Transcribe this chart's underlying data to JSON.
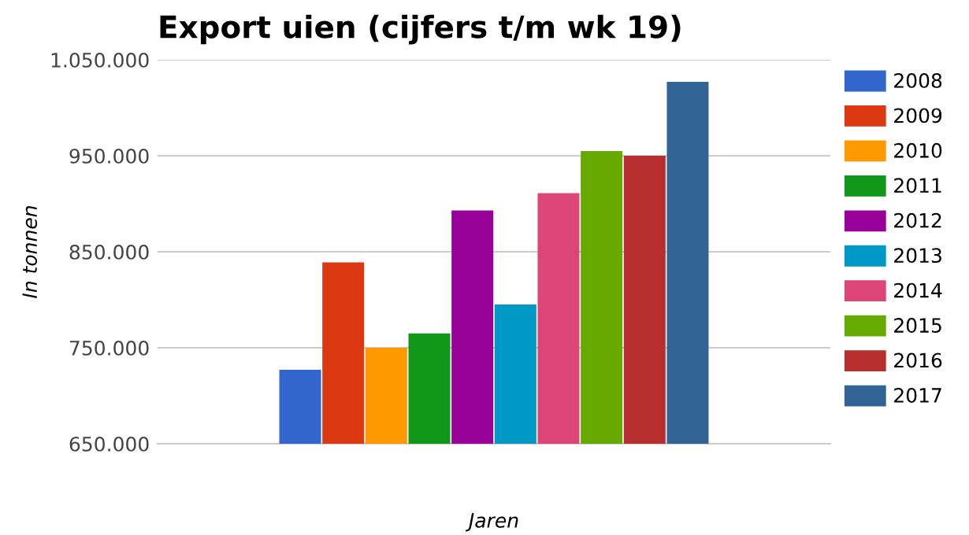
{
  "chart_data": {
    "type": "bar",
    "title": "Export uien (cijfers t/m wk 19)",
    "xlabel": "Jaren",
    "ylabel": "In tonnen",
    "categories": [
      null
    ],
    "series": [
      {
        "name": "2008",
        "color": "#3366cc",
        "values": [
          727000
        ]
      },
      {
        "name": "2009",
        "color": "#dc3912",
        "values": [
          839000
        ]
      },
      {
        "name": "2010",
        "color": "#ff9900",
        "values": [
          750000
        ]
      },
      {
        "name": "2011",
        "color": "#109618",
        "values": [
          765000
        ]
      },
      {
        "name": "2012",
        "color": "#990099",
        "values": [
          893000
        ]
      },
      {
        "name": "2013",
        "color": "#0099c6",
        "values": [
          795000
        ]
      },
      {
        "name": "2014",
        "color": "#dd4477",
        "values": [
          911000
        ]
      },
      {
        "name": "2015",
        "color": "#66aa00",
        "values": [
          955000
        ]
      },
      {
        "name": "2016",
        "color": "#b82e2e",
        "values": [
          950000
        ]
      },
      {
        "name": "2017",
        "color": "#316395",
        "values": [
          1027000
        ]
      }
    ],
    "ylim": [
      650000,
      1050000
    ],
    "yticks": [
      {
        "value": 650000,
        "label": "650.000"
      },
      {
        "value": 750000,
        "label": "750.000"
      },
      {
        "value": 850000,
        "label": "850.000"
      },
      {
        "value": 950000,
        "label": "950.000"
      },
      {
        "value": 1050000,
        "label": "1.050.000"
      }
    ],
    "grid": "y",
    "legend": "right"
  }
}
